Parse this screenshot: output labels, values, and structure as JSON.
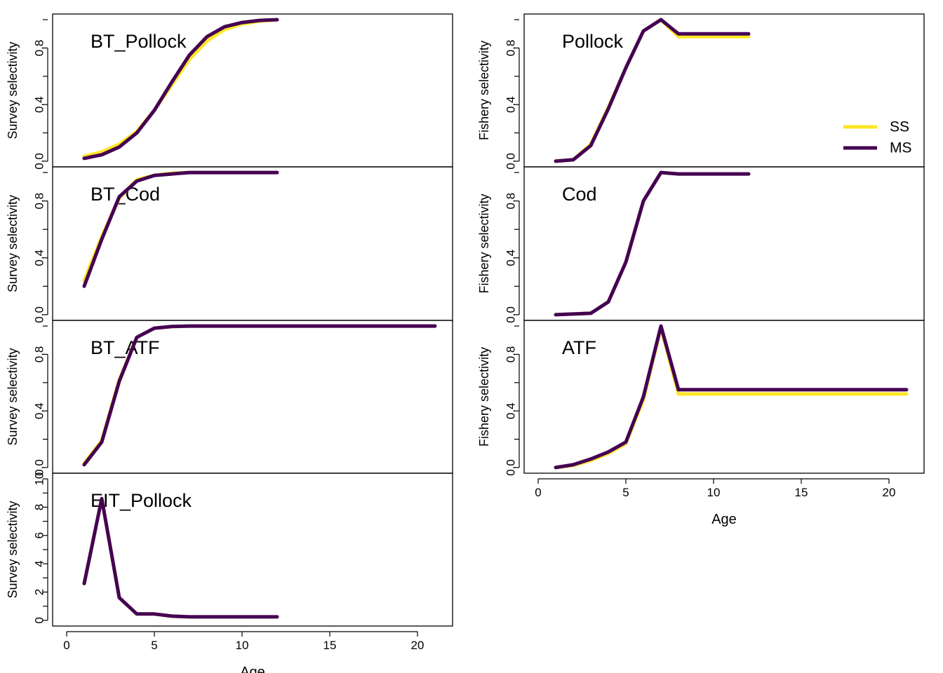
{
  "colors": {
    "SS": "#FDE725",
    "MS": "#440154"
  },
  "legend": {
    "placement": "right, inside Pollock panel",
    "entries": [
      {
        "name": "SS",
        "color": "#FDE725"
      },
      {
        "name": "MS",
        "color": "#440154"
      }
    ]
  },
  "chart_data": [
    {
      "type": "line",
      "title": "BT_Pollock",
      "ylabel": "Survey selectivity",
      "xlabel": "",
      "xlim": [
        -0.8,
        22
      ],
      "ylim": [
        -0.04,
        1.04
      ],
      "yticks": [
        0.0,
        0.4,
        0.8
      ],
      "yticklabels": [
        "0.0",
        "0.4",
        "0.8"
      ],
      "yminor": [
        0.2,
        0.6,
        1.0
      ],
      "x": [
        1,
        2,
        3,
        4,
        5,
        6,
        7,
        8,
        9,
        10,
        11,
        12
      ],
      "series": [
        {
          "name": "SS",
          "values": [
            0.035,
            0.065,
            0.12,
            0.21,
            0.36,
            0.54,
            0.72,
            0.85,
            0.93,
            0.97,
            0.99,
            1.0
          ]
        },
        {
          "name": "MS",
          "values": [
            0.02,
            0.045,
            0.1,
            0.2,
            0.36,
            0.56,
            0.75,
            0.88,
            0.95,
            0.98,
            0.995,
            1.0
          ]
        }
      ]
    },
    {
      "type": "line",
      "title": "BT_Cod",
      "ylabel": "Survey selectivity",
      "xlabel": "",
      "xlim": [
        -0.8,
        22
      ],
      "ylim": [
        -0.04,
        1.04
      ],
      "yticks": [
        0.0,
        0.4,
        0.8
      ],
      "yticklabels": [
        "0.0",
        "0.4",
        "0.8"
      ],
      "yminor": [
        0.2,
        0.6,
        1.0
      ],
      "x": [
        1,
        2,
        3,
        4,
        5,
        6,
        7,
        8,
        9,
        10,
        11,
        12
      ],
      "series": [
        {
          "name": "SS",
          "values": [
            0.24,
            0.55,
            0.82,
            0.95,
            0.98,
            0.995,
            1.0,
            1.0,
            1.0,
            1.0,
            1.0,
            1.0
          ]
        },
        {
          "name": "MS",
          "values": [
            0.2,
            0.53,
            0.83,
            0.94,
            0.98,
            0.99,
            1.0,
            1.0,
            1.0,
            1.0,
            1.0,
            1.0
          ]
        }
      ]
    },
    {
      "type": "line",
      "title": "BT_ATF",
      "ylabel": "Survey selectivity",
      "xlabel": "",
      "xlim": [
        -0.8,
        22
      ],
      "ylim": [
        -0.04,
        1.04
      ],
      "yticks": [
        0.0,
        0.4,
        0.8
      ],
      "yticklabels": [
        "0.0",
        "0.4",
        "0.8"
      ],
      "yminor": [
        0.2,
        0.6,
        1.0
      ],
      "x": [
        1,
        2,
        3,
        4,
        5,
        6,
        7,
        8,
        9,
        10,
        11,
        12,
        13,
        14,
        15,
        16,
        17,
        18,
        19,
        20,
        21
      ],
      "series": [
        {
          "name": "SS",
          "values": [
            0.03,
            0.19,
            0.62,
            0.92,
            0.985,
            0.997,
            1.0,
            1.0,
            1.0,
            1.0,
            1.0,
            1.0,
            1.0,
            1.0,
            1.0,
            1.0,
            1.0,
            1.0,
            1.0,
            1.0,
            1.0
          ]
        },
        {
          "name": "MS",
          "values": [
            0.02,
            0.18,
            0.61,
            0.92,
            0.985,
            0.997,
            1.0,
            1.0,
            1.0,
            1.0,
            1.0,
            1.0,
            1.0,
            1.0,
            1.0,
            1.0,
            1.0,
            1.0,
            1.0,
            1.0,
            1.0
          ]
        }
      ]
    },
    {
      "type": "line",
      "title": "EIT_Pollock",
      "ylabel": "Survey selectivity",
      "xlabel": "Age",
      "xlim": [
        -0.8,
        22
      ],
      "xticks": [
        0,
        5,
        10,
        15,
        20
      ],
      "xticklabels": [
        "0",
        "5",
        "10",
        "15",
        "20"
      ],
      "ylim": [
        -0.4,
        10.4
      ],
      "yticks": [
        0,
        2,
        4,
        6,
        8,
        10
      ],
      "yticklabels": [
        "0",
        "2",
        "4",
        "6",
        "8",
        "10"
      ],
      "yminor": [
        1,
        3,
        5,
        7,
        9
      ],
      "x": [
        1,
        2,
        3,
        4,
        5,
        6,
        7,
        8,
        9,
        10,
        11,
        12
      ],
      "series": [
        {
          "name": "SS",
          "values": [
            2.6,
            8.6,
            1.6,
            0.45,
            0.45,
            0.3,
            0.25,
            0.25,
            0.25,
            0.25,
            0.25,
            0.25
          ]
        },
        {
          "name": "MS",
          "values": [
            2.6,
            8.6,
            1.6,
            0.45,
            0.45,
            0.3,
            0.25,
            0.25,
            0.25,
            0.25,
            0.25,
            0.25
          ]
        }
      ]
    },
    {
      "type": "line",
      "title": "Pollock",
      "ylabel": "Fishery selectivity",
      "xlabel": "",
      "xlim": [
        -0.8,
        22
      ],
      "ylim": [
        -0.04,
        1.04
      ],
      "yticks": [
        0.0,
        0.4,
        0.8
      ],
      "yticklabels": [
        "0.0",
        "0.4",
        "0.8"
      ],
      "yminor": [
        0.2,
        0.6,
        1.0
      ],
      "x": [
        1,
        2,
        3,
        4,
        5,
        6,
        7,
        8,
        9,
        10,
        11,
        12
      ],
      "series": [
        {
          "name": "SS",
          "values": [
            0.0,
            0.01,
            0.12,
            0.38,
            0.66,
            0.92,
            1.0,
            0.88,
            0.88,
            0.88,
            0.88,
            0.88
          ]
        },
        {
          "name": "MS",
          "values": [
            0.0,
            0.01,
            0.11,
            0.37,
            0.66,
            0.92,
            1.0,
            0.9,
            0.9,
            0.9,
            0.9,
            0.9
          ]
        }
      ]
    },
    {
      "type": "line",
      "title": "Cod",
      "ylabel": "Fishery selectivity",
      "xlabel": "",
      "xlim": [
        -0.8,
        22
      ],
      "ylim": [
        -0.04,
        1.04
      ],
      "yticks": [
        0.0,
        0.4,
        0.8
      ],
      "yticklabels": [
        "0.0",
        "0.4",
        "0.8"
      ],
      "yminor": [
        0.2,
        0.6,
        1.0
      ],
      "x": [
        1,
        2,
        3,
        4,
        5,
        6,
        7,
        8,
        9,
        10,
        11,
        12
      ],
      "series": [
        {
          "name": "SS",
          "values": [
            0.0,
            0.005,
            0.01,
            0.09,
            0.37,
            0.8,
            1.0,
            0.99,
            0.99,
            0.99,
            0.99,
            0.99
          ]
        },
        {
          "name": "MS",
          "values": [
            0.0,
            0.005,
            0.01,
            0.09,
            0.37,
            0.8,
            1.0,
            0.99,
            0.99,
            0.99,
            0.99,
            0.99
          ]
        }
      ]
    },
    {
      "type": "line",
      "title": "ATF",
      "ylabel": "Fishery selectivity",
      "xlabel": "Age",
      "xlim": [
        -0.8,
        22
      ],
      "xticks": [
        0,
        5,
        10,
        15,
        20
      ],
      "xticklabels": [
        "0",
        "5",
        "10",
        "15",
        "20"
      ],
      "ylim": [
        -0.04,
        1.04
      ],
      "yticks": [
        0.0,
        0.4,
        0.8
      ],
      "yticklabels": [
        "0.0",
        "0.4",
        "0.8"
      ],
      "yminor": [
        0.2,
        0.6,
        1.0
      ],
      "x": [
        1,
        2,
        3,
        4,
        5,
        6,
        7,
        8,
        9,
        10,
        11,
        12,
        13,
        14,
        15,
        16,
        17,
        18,
        19,
        20,
        21
      ],
      "series": [
        {
          "name": "SS",
          "values": [
            0.0,
            0.015,
            0.05,
            0.1,
            0.17,
            0.48,
            0.99,
            0.52,
            0.52,
            0.52,
            0.52,
            0.52,
            0.52,
            0.52,
            0.52,
            0.52,
            0.52,
            0.52,
            0.52,
            0.52,
            0.52
          ]
        },
        {
          "name": "MS",
          "values": [
            0.0,
            0.02,
            0.06,
            0.11,
            0.18,
            0.5,
            1.0,
            0.55,
            0.55,
            0.55,
            0.55,
            0.55,
            0.55,
            0.55,
            0.55,
            0.55,
            0.55,
            0.55,
            0.55,
            0.55,
            0.55
          ]
        }
      ]
    }
  ]
}
